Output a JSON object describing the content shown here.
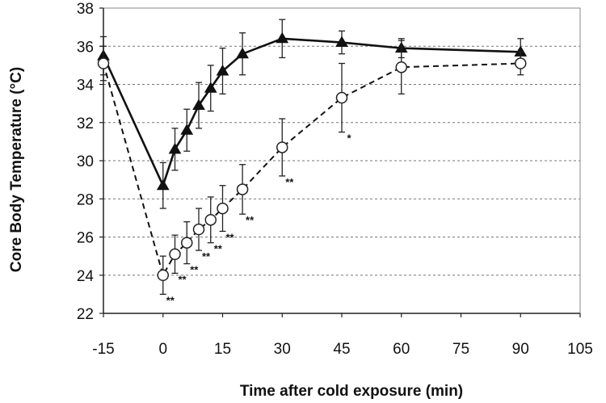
{
  "chart_data": {
    "type": "line",
    "title": "",
    "xlabel": "Time after cold exposure (min)",
    "ylabel": "Core Body Temperature (°C)",
    "xlim": [
      -15,
      105
    ],
    "ylim": [
      22,
      38
    ],
    "xticks": [
      "-15",
      "0",
      "15",
      "30",
      "45",
      "60",
      "75",
      "90",
      "105"
    ],
    "yticks": [
      "22",
      "24",
      "26",
      "28",
      "30",
      "32",
      "34",
      "36",
      "38"
    ],
    "grid": "horizontal dashed",
    "legend": "none",
    "series": [
      {
        "marker": "filled-triangle",
        "line": "solid",
        "color": "#111111",
        "x": [
          -15,
          0,
          3,
          6,
          9,
          12,
          15,
          20,
          30,
          45,
          60,
          90
        ],
        "y": [
          35.5,
          28.7,
          30.6,
          31.6,
          32.9,
          33.8,
          34.7,
          35.6,
          36.4,
          36.2,
          35.9,
          35.7
        ],
        "error": [
          1.0,
          1.2,
          1.1,
          1.1,
          1.2,
          1.2,
          1.2,
          1.1,
          1.0,
          0.6,
          0.5,
          0.7
        ]
      },
      {
        "marker": "open-circle",
        "line": "dashed",
        "color": "#111111",
        "x": [
          -15,
          0,
          3,
          6,
          9,
          12,
          15,
          20,
          30,
          45,
          60,
          90
        ],
        "y": [
          35.1,
          24.0,
          25.1,
          25.7,
          26.4,
          26.9,
          27.5,
          28.5,
          30.7,
          33.3,
          34.9,
          35.1
        ],
        "error": [
          0.9,
          1.0,
          1.0,
          1.1,
          1.1,
          1.2,
          1.2,
          1.3,
          1.5,
          1.8,
          1.4,
          0.6
        ]
      }
    ],
    "annotations": [
      {
        "x": 0,
        "text": "**"
      },
      {
        "x": 3,
        "text": "**"
      },
      {
        "x": 6,
        "text": "**"
      },
      {
        "x": 9,
        "text": "**"
      },
      {
        "x": 12,
        "text": "**"
      },
      {
        "x": 15,
        "text": "**"
      },
      {
        "x": 20,
        "text": "**"
      },
      {
        "x": 30,
        "text": "**"
      },
      {
        "x": 45,
        "text": "*"
      }
    ]
  }
}
